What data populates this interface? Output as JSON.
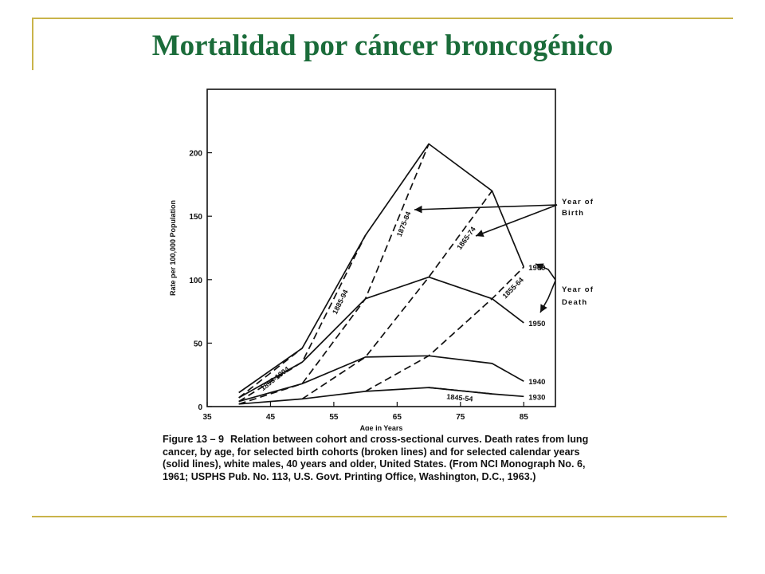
{
  "slide": {
    "title": "Mortalidad por cáncer broncogénico",
    "accent_color": "#c9b44a",
    "title_color": "#1b6c3a"
  },
  "figure": {
    "caption_label": "Figure 13 – 9",
    "caption_text": "Relation between cohort and cross-sectional curves. Death rates from lung cancer, by age, for selected birth cohorts (broken lines) and for selected calendar years (solid lines), white males, 40 years and older, United States. (From NCI Monograph No. 6, 1961; USPHS Pub. No. 113, U.S. Govt. Printing Office, Washington, D.C., 1963.)"
  },
  "chart_data": {
    "type": "line",
    "xlabel": "Age in Years",
    "ylabel": "Rate per 100,000 Population",
    "xlim": [
      35,
      90
    ],
    "ylim": [
      0,
      250
    ],
    "xticks": [
      35,
      45,
      55,
      65,
      75,
      85
    ],
    "yticks": [
      0,
      50,
      100,
      150,
      200
    ],
    "grid": false,
    "series": [
      {
        "name": "1930",
        "style": "solid",
        "label_at": "right",
        "points": [
          [
            40,
            2
          ],
          [
            50,
            6
          ],
          [
            60,
            12
          ],
          [
            70,
            15
          ],
          [
            80,
            10
          ],
          [
            85,
            8
          ]
        ]
      },
      {
        "name": "1940",
        "style": "solid",
        "label_at": "right",
        "points": [
          [
            40,
            4
          ],
          [
            50,
            18
          ],
          [
            60,
            39
          ],
          [
            70,
            40
          ],
          [
            80,
            34
          ],
          [
            85,
            20
          ]
        ]
      },
      {
        "name": "1950",
        "style": "solid",
        "label_at": "right",
        "points": [
          [
            40,
            7
          ],
          [
            50,
            35
          ],
          [
            60,
            85
          ],
          [
            70,
            102
          ],
          [
            80,
            85
          ],
          [
            85,
            66
          ]
        ]
      },
      {
        "name": "1960",
        "style": "solid",
        "label_at": "right",
        "points": [
          [
            40,
            11
          ],
          [
            50,
            46
          ],
          [
            60,
            135
          ],
          [
            70,
            207
          ],
          [
            80,
            170
          ],
          [
            85,
            110
          ]
        ]
      },
      {
        "name": "1845-54",
        "style": "dashed",
        "points": [
          [
            70,
            15
          ],
          [
            80,
            10
          ]
        ]
      },
      {
        "name": "1855-64",
        "style": "dashed",
        "points": [
          [
            60,
            12
          ],
          [
            70,
            40
          ],
          [
            80,
            85
          ],
          [
            85,
            110
          ]
        ]
      },
      {
        "name": "1865-74",
        "style": "dashed",
        "points": [
          [
            50,
            6
          ],
          [
            60,
            39
          ],
          [
            70,
            102
          ],
          [
            80,
            170
          ]
        ]
      },
      {
        "name": "1875-84",
        "style": "dashed",
        "points": [
          [
            40,
            2
          ],
          [
            50,
            18
          ],
          [
            60,
            85
          ],
          [
            70,
            207
          ]
        ]
      },
      {
        "name": "1885-94",
        "style": "dashed",
        "points": [
          [
            40,
            4
          ],
          [
            50,
            35
          ],
          [
            60,
            135
          ]
        ]
      },
      {
        "name": "1895-1904",
        "style": "dashed",
        "points": [
          [
            40,
            7
          ],
          [
            50,
            46
          ]
        ]
      }
    ],
    "annotations": {
      "year_of_birth": "Year of Birth",
      "year_of_death": "Year of Death"
    }
  }
}
